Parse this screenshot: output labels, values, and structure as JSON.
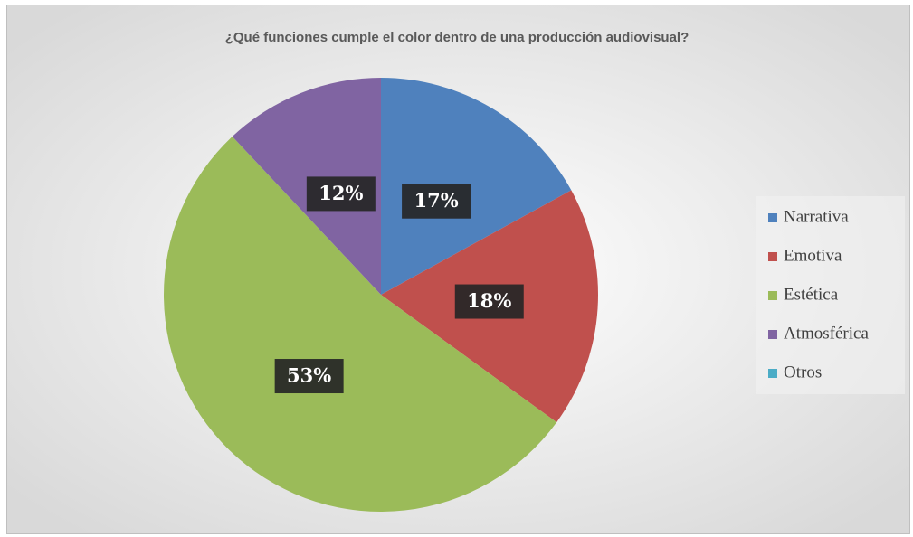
{
  "chart_data": {
    "type": "pie",
    "title": "¿Qué funciones cumple el color dentro de una producción audiovisual?",
    "categories": [
      "Narrativa",
      "Emotiva",
      "Estética",
      "Atmosférica",
      "Otros"
    ],
    "values": [
      17,
      18,
      53,
      12,
      0
    ],
    "value_labels": [
      "17%",
      "18%",
      "53%",
      "12%",
      null
    ],
    "colors": [
      "#4f81bd",
      "#c0504d",
      "#9bbb59",
      "#8064a2",
      "#4bacc6"
    ],
    "legend": "right"
  }
}
